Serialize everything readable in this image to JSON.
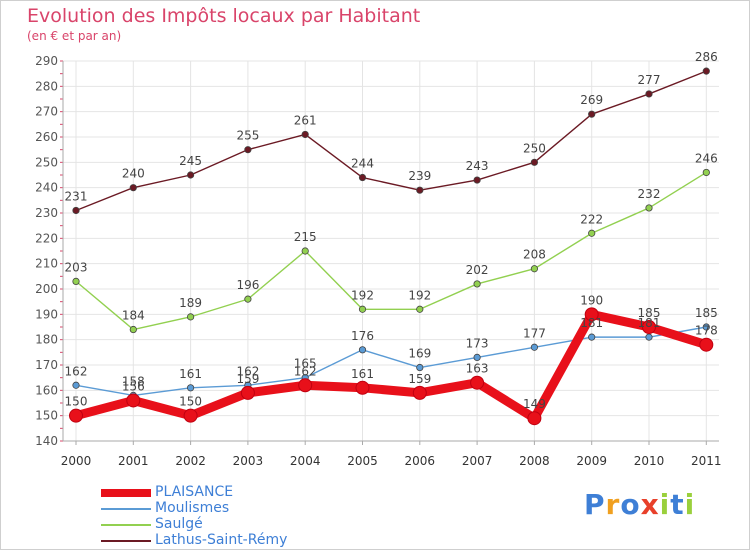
{
  "header": {
    "title": "Evolution des Impôts locaux par Habitant",
    "subtitle": "(en € et par an)"
  },
  "brand": {
    "letters": [
      "P",
      "r",
      "o",
      "x",
      "i",
      "t",
      "i"
    ],
    "colors": [
      "#3e7fd6",
      "#f0a020",
      "#3e7fd6",
      "#e8402a",
      "#9ad03c",
      "#3e7fd6",
      "#9ad03c"
    ]
  },
  "chart_data": {
    "type": "line",
    "title": "Evolution des Impôts locaux par Habitant",
    "subtitle": "(en € et par an)",
    "x": [
      "2000",
      "2001",
      "2002",
      "2003",
      "2004",
      "2005",
      "2006",
      "2007",
      "2008",
      "2009",
      "2010",
      "2011"
    ],
    "ylim": [
      140,
      290
    ],
    "yticks": [
      140,
      150,
      160,
      170,
      180,
      190,
      200,
      210,
      220,
      230,
      240,
      250,
      260,
      270,
      280,
      290
    ],
    "grid": true,
    "legend_position": "bottom-left",
    "series": [
      {
        "name": "PLAISANCE",
        "color": "#e8101a",
        "highlight": true,
        "values": [
          150,
          156,
          150,
          159,
          162,
          161,
          159,
          163,
          149,
          190,
          185,
          178
        ],
        "labels": [
          "150",
          "156",
          "150",
          "159",
          "162",
          "161",
          "159",
          "163",
          "149",
          "190",
          "185",
          "178"
        ]
      },
      {
        "name": "Moulismes",
        "color": "#5b9bd5",
        "values": [
          162,
          158,
          161,
          162,
          165,
          176,
          169,
          173,
          177,
          181,
          181,
          185
        ],
        "labels": [
          "162",
          "158",
          "161",
          "162",
          "165",
          "176",
          "169",
          "173",
          "177",
          "181",
          "181",
          "185"
        ]
      },
      {
        "name": "Saulgé",
        "color": "#92d050",
        "values": [
          203,
          184,
          189,
          196,
          215,
          192,
          192,
          202,
          208,
          222,
          232,
          246
        ],
        "labels": [
          "203",
          "184",
          "189",
          "196",
          "215",
          "192",
          "192",
          "202",
          "208",
          "222",
          "232",
          "246"
        ]
      },
      {
        "name": "Lathus-Saint-Rémy",
        "color": "#6b1a24",
        "values": [
          231,
          240,
          245,
          255,
          261,
          244,
          239,
          243,
          250,
          269,
          277,
          286
        ],
        "labels": [
          "231",
          "240",
          "245",
          "255",
          "261",
          "244",
          "239",
          "243",
          "250",
          "269",
          "277",
          "286"
        ]
      }
    ]
  }
}
